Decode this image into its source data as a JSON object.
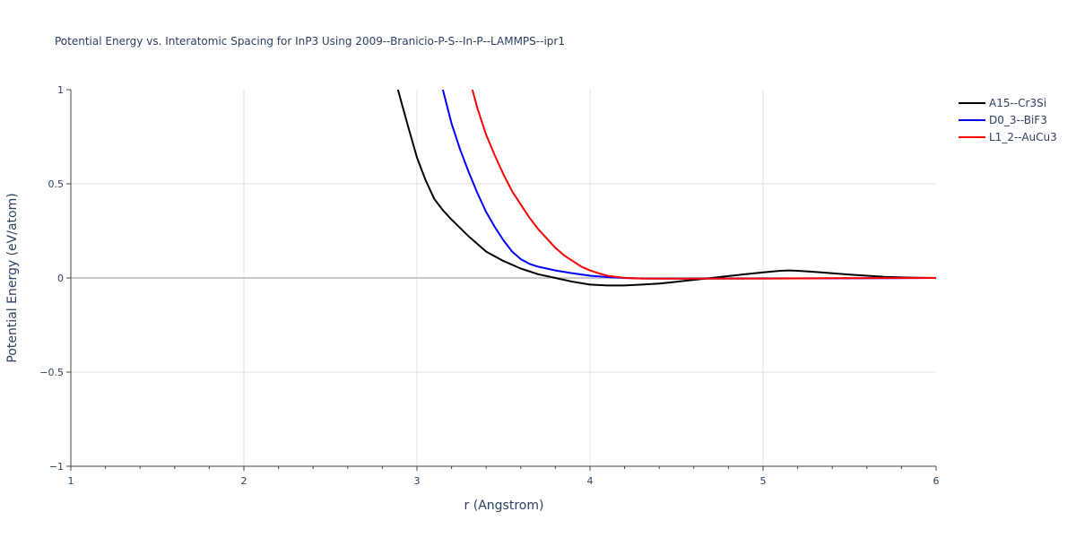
{
  "chart_data": {
    "type": "line",
    "title": "Potential Energy vs. Interatomic Spacing for InP3 Using 2009--Branicio-P-S--In-P--LAMMPS--ipr1",
    "xlabel": "r (Angstrom)",
    "ylabel": "Potential Energy (eV/atom)",
    "xlim": [
      1,
      6
    ],
    "ylim": [
      -1,
      1
    ],
    "xticks": [
      "1",
      "2",
      "3",
      "4",
      "5",
      "6"
    ],
    "yticks": [
      "−1",
      "−0.5",
      "0",
      "0.5",
      "1"
    ],
    "grid": true,
    "legend_position": "top-right",
    "series": [
      {
        "name": "A15--Cr3Si",
        "color": "#000000",
        "x": [
          2.89,
          2.95,
          3.0,
          3.05,
          3.1,
          3.15,
          3.2,
          3.3,
          3.4,
          3.5,
          3.6,
          3.7,
          3.8,
          3.9,
          4.0,
          4.1,
          4.2,
          4.3,
          4.4,
          4.5,
          4.6,
          4.7,
          4.8,
          4.9,
          5.0,
          5.1,
          5.15,
          5.2,
          5.3,
          5.4,
          5.5,
          5.6,
          5.7,
          5.8,
          5.9,
          6.0
        ],
        "y": [
          1.0,
          0.8,
          0.64,
          0.52,
          0.42,
          0.36,
          0.31,
          0.22,
          0.14,
          0.09,
          0.05,
          0.02,
          0.0,
          -0.02,
          -0.035,
          -0.04,
          -0.04,
          -0.035,
          -0.03,
          -0.02,
          -0.01,
          0.0,
          0.01,
          0.02,
          0.03,
          0.038,
          0.04,
          0.038,
          0.032,
          0.025,
          0.018,
          0.012,
          0.006,
          0.003,
          0.001,
          0.0
        ]
      },
      {
        "name": "D0_3--BiF3",
        "color": "#0000ff",
        "x": [
          3.15,
          3.2,
          3.25,
          3.3,
          3.35,
          3.4,
          3.45,
          3.5,
          3.55,
          3.6,
          3.65,
          3.7,
          3.8,
          3.9,
          4.0,
          4.1,
          4.2,
          4.3,
          4.5,
          5.0,
          5.5,
          6.0
        ],
        "y": [
          1.0,
          0.82,
          0.68,
          0.56,
          0.45,
          0.35,
          0.27,
          0.2,
          0.14,
          0.1,
          0.075,
          0.06,
          0.04,
          0.025,
          0.012,
          0.005,
          0.0,
          -0.003,
          -0.004,
          -0.003,
          -0.002,
          0.0
        ]
      },
      {
        "name": "L1_2--AuCu3",
        "color": "#ff0000",
        "x": [
          3.32,
          3.35,
          3.4,
          3.45,
          3.5,
          3.55,
          3.6,
          3.65,
          3.7,
          3.75,
          3.8,
          3.85,
          3.9,
          3.95,
          4.0,
          4.05,
          4.1,
          4.2,
          4.3,
          4.5,
          5.0,
          5.5,
          6.0
        ],
        "y": [
          1.0,
          0.9,
          0.76,
          0.65,
          0.55,
          0.46,
          0.39,
          0.32,
          0.26,
          0.21,
          0.16,
          0.12,
          0.09,
          0.06,
          0.04,
          0.025,
          0.012,
          0.0,
          -0.003,
          -0.004,
          -0.003,
          -0.001,
          0.0
        ]
      }
    ]
  }
}
